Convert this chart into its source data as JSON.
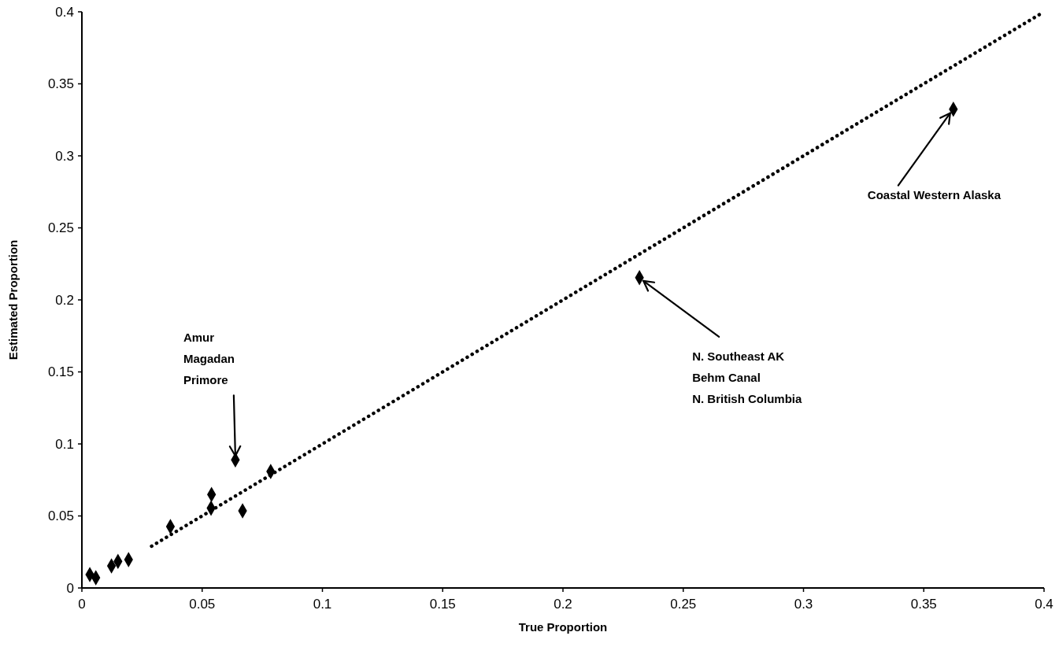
{
  "chart_data": {
    "type": "scatter",
    "xlabel": "True Proportion",
    "ylabel": "Estimated Proportion",
    "xlim": [
      0,
      0.4
    ],
    "ylim": [
      0,
      0.4
    ],
    "xticks": [
      0,
      0.05,
      0.1,
      0.15,
      0.2,
      0.25,
      0.3,
      0.35,
      0.4
    ],
    "yticks": [
      0,
      0.05,
      0.1,
      0.15,
      0.2,
      0.25,
      0.3,
      0.35,
      0.4
    ],
    "grid": false,
    "marker": "diamond",
    "series": [
      {
        "color": "#000000",
        "x": [
          0.0033,
          0.0058,
          0.0123,
          0.015,
          0.0194,
          0.0368,
          0.0539,
          0.0537,
          0.0638,
          0.0668,
          0.0785,
          0.2318,
          0.3623
        ],
        "values": [
          0.0093,
          0.0071,
          0.0153,
          0.0184,
          0.0197,
          0.0426,
          0.0649,
          0.0554,
          0.0889,
          0.0536,
          0.0809,
          0.2154,
          0.3324
        ]
      },
      {
        "type": "line",
        "color": "#000000",
        "line_style": "dotted",
        "marker": "none",
        "x": [
          0.029,
          0.4
        ],
        "values": [
          0.029,
          0.4
        ]
      }
    ],
    "annotations": [
      {
        "text": "Amur\nMagadan\nPrimore",
        "x": 0.0638,
        "y": 0.0889
      },
      {
        "text": "N. Southeast AK\nBehm Canal\nN. British Columbia",
        "x": 0.2318,
        "y": 0.2154
      },
      {
        "text": "Coastal Western Alaska",
        "x": 0.3623,
        "y": 0.3324
      }
    ]
  }
}
